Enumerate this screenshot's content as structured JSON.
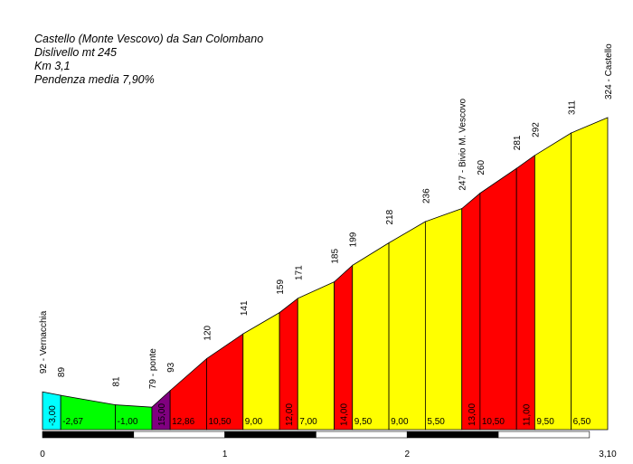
{
  "header": {
    "title": "Castello (Monte Vescovo) da San Colombano",
    "line2": "Dislivello mt 245",
    "line3": "Km 3,1",
    "line4": "Pendenza media 7,90%"
  },
  "chart_data": {
    "type": "area",
    "xlim": [
      0,
      3.1
    ],
    "ylim": [
      60,
      340
    ],
    "x_ticks": [
      "0",
      "1",
      "2",
      "3,10"
    ],
    "points": [
      {
        "x": 0.0,
        "y": 92,
        "label": "92 - Vernacchia"
      },
      {
        "x": 0.1,
        "y": 89,
        "label": "89"
      },
      {
        "x": 0.4,
        "y": 81,
        "label": "81"
      },
      {
        "x": 0.6,
        "y": 79,
        "label": "79 - ponte"
      },
      {
        "x": 0.7,
        "y": 93,
        "label": "93"
      },
      {
        "x": 0.9,
        "y": 120,
        "label": "120"
      },
      {
        "x": 1.1,
        "y": 141,
        "label": "141"
      },
      {
        "x": 1.3,
        "y": 159,
        "label": "159"
      },
      {
        "x": 1.4,
        "y": 171,
        "label": "171"
      },
      {
        "x": 1.6,
        "y": 185,
        "label": "185"
      },
      {
        "x": 1.7,
        "y": 199,
        "label": "199"
      },
      {
        "x": 1.9,
        "y": 218,
        "label": "218"
      },
      {
        "x": 2.1,
        "y": 236,
        "label": "236"
      },
      {
        "x": 2.3,
        "y": 247,
        "label": "247 - Bivio M. Vescovo"
      },
      {
        "x": 2.4,
        "y": 260,
        "label": "260"
      },
      {
        "x": 2.6,
        "y": 281,
        "label": "281"
      },
      {
        "x": 2.7,
        "y": 292,
        "label": "292"
      },
      {
        "x": 2.9,
        "y": 311,
        "label": "311"
      },
      {
        "x": 3.1,
        "y": 324,
        "label": "324 - Castello"
      }
    ],
    "segments": [
      {
        "grade": "-3,00",
        "color": "#00ffff"
      },
      {
        "grade": "-2,67",
        "color": "#00ff00"
      },
      {
        "grade": "-1,00",
        "color": "#00ff00"
      },
      {
        "grade": "15,00",
        "color": "#800080"
      },
      {
        "grade": "12,86",
        "color": "#ff0000"
      },
      {
        "grade": "10,50",
        "color": "#ff0000"
      },
      {
        "grade": "9,00",
        "color": "#ffff00"
      },
      {
        "grade": "12,00",
        "color": "#ff0000"
      },
      {
        "grade": "7,00",
        "color": "#ffff00"
      },
      {
        "grade": "14,00",
        "color": "#ff0000"
      },
      {
        "grade": "9,50",
        "color": "#ffff00"
      },
      {
        "grade": "9,00",
        "color": "#ffff00"
      },
      {
        "grade": "5,50",
        "color": "#ffff00"
      },
      {
        "grade": "13,00",
        "color": "#ff0000"
      },
      {
        "grade": "10,50",
        "color": "#ff0000"
      },
      {
        "grade": "11,00",
        "color": "#ff0000"
      },
      {
        "grade": "9,50",
        "color": "#ffff00"
      },
      {
        "grade": "6,50",
        "color": "#ffff00"
      }
    ]
  }
}
